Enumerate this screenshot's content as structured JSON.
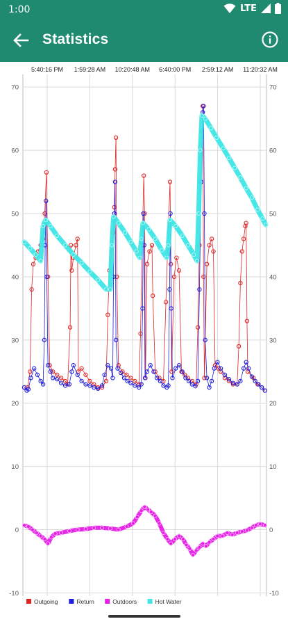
{
  "status": {
    "time": "1:00",
    "network": "LTE"
  },
  "app": {
    "title": "Statistics"
  },
  "icons": {
    "back": "arrow-back-icon",
    "info": "info-icon",
    "wifi": "wifi-icon",
    "signal": "signal-icon",
    "battery": "battery-icon"
  },
  "colors": {
    "appbar": "#1f8a70",
    "outgoing": "#e02424",
    "return": "#1c1ce0",
    "outdoors": "#e81ee8",
    "hot_water": "#3ee6e6"
  },
  "chart_data": {
    "type": "line",
    "x_ticks": [
      "5:40:16 PM",
      "1:59:28 AM",
      "10:20:48 AM",
      "6:40:00 PM",
      "2:59:12 AM",
      "11:20:32 AM"
    ],
    "y_ticks": [
      70,
      60,
      50,
      40,
      30,
      20,
      10,
      0,
      -10
    ],
    "ylim": [
      -10.5,
      72
    ],
    "grid": true,
    "legend_position": "bottom-left",
    "series": [
      {
        "name": "Outgoing",
        "style": "points-line",
        "values": [
          [
            0.0,
            22.5
          ],
          [
            0.4,
            22.5
          ],
          [
            0.7,
            25.0
          ],
          [
            0.9,
            38.0
          ],
          [
            1.1,
            42.0
          ],
          [
            1.4,
            43.0
          ],
          [
            1.7,
            44.0
          ],
          [
            2.0,
            45.0
          ],
          [
            2.3,
            46.0
          ],
          [
            2.5,
            50.0
          ],
          [
            2.7,
            56.5
          ],
          [
            2.9,
            40.0
          ],
          [
            3.1,
            26.0
          ],
          [
            3.5,
            25.0
          ],
          [
            4.0,
            24.5
          ],
          [
            4.5,
            24.0
          ],
          [
            5.0,
            23.5
          ],
          [
            5.3,
            23.0
          ],
          [
            5.6,
            32.0
          ],
          [
            5.7,
            45.0
          ],
          [
            5.8,
            41.0
          ],
          [
            6.0,
            43.0
          ],
          [
            6.3,
            45.0
          ],
          [
            6.5,
            46.0
          ],
          [
            6.6,
            25.0
          ],
          [
            7.0,
            25.5
          ],
          [
            7.5,
            24.5
          ],
          [
            8.0,
            23.5
          ],
          [
            8.5,
            23.0
          ],
          [
            9.0,
            22.5
          ],
          [
            9.5,
            22.5
          ],
          [
            10.0,
            23.5
          ],
          [
            10.2,
            34.0
          ],
          [
            10.4,
            41.0
          ],
          [
            10.7,
            44.0
          ],
          [
            10.9,
            47.0
          ],
          [
            11.0,
            51.0
          ],
          [
            11.1,
            57.0
          ],
          [
            11.2,
            62.0
          ],
          [
            11.3,
            40.0
          ],
          [
            11.5,
            26.0
          ],
          [
            12.0,
            25.0
          ],
          [
            12.5,
            24.5
          ],
          [
            13.0,
            24.0
          ],
          [
            13.5,
            23.5
          ],
          [
            14.0,
            23.0
          ],
          [
            14.2,
            31.0
          ],
          [
            14.4,
            45.0
          ],
          [
            14.6,
            56.0
          ],
          [
            14.7,
            50.0
          ],
          [
            14.8,
            24.0
          ],
          [
            15.0,
            42.0
          ],
          [
            15.3,
            44.0
          ],
          [
            15.6,
            45.0
          ],
          [
            15.7,
            37.0
          ],
          [
            16.0,
            25.0
          ],
          [
            16.5,
            24.0
          ],
          [
            17.0,
            23.5
          ],
          [
            17.3,
            36.0
          ],
          [
            17.5,
            44.0
          ],
          [
            17.8,
            55.0
          ],
          [
            17.9,
            42.0
          ],
          [
            18.0,
            25.0
          ],
          [
            18.3,
            40.0
          ],
          [
            18.6,
            43.0
          ],
          [
            18.9,
            41.0
          ],
          [
            19.2,
            25.0
          ],
          [
            19.6,
            24.5
          ],
          [
            20.0,
            24.0
          ],
          [
            20.5,
            23.5
          ],
          [
            21.0,
            23.0
          ],
          [
            21.2,
            32.0
          ],
          [
            21.4,
            45.0
          ],
          [
            21.6,
            55.0
          ],
          [
            21.7,
            63.0
          ],
          [
            21.8,
            67.0
          ],
          [
            21.9,
            40.0
          ],
          [
            22.0,
            24.0
          ],
          [
            22.3,
            42.0
          ],
          [
            22.6,
            45.0
          ],
          [
            22.9,
            46.0
          ],
          [
            23.1,
            44.0
          ],
          [
            23.3,
            26.0
          ],
          [
            23.7,
            25.5
          ],
          [
            24.0,
            25.0
          ],
          [
            24.5,
            24.0
          ],
          [
            25.0,
            23.5
          ],
          [
            25.5,
            23.0
          ],
          [
            26.0,
            23.0
          ],
          [
            26.2,
            29.0
          ],
          [
            26.4,
            39.0
          ],
          [
            26.6,
            44.0
          ],
          [
            26.8,
            46.0
          ],
          [
            27.0,
            48.0
          ],
          [
            27.1,
            48.5
          ],
          [
            27.2,
            33.0
          ],
          [
            27.3,
            25.0
          ],
          [
            28.0,
            24.0
          ],
          [
            28.5,
            23.0
          ],
          [
            29.0,
            22.5
          ],
          [
            29.4,
            22.0
          ]
        ]
      },
      {
        "name": "Return",
        "style": "points-line",
        "values": [
          [
            0.0,
            22.5
          ],
          [
            0.3,
            22.0
          ],
          [
            0.5,
            22.2
          ],
          [
            0.8,
            24.0
          ],
          [
            1.2,
            25.5
          ],
          [
            1.6,
            24.5
          ],
          [
            2.0,
            23.5
          ],
          [
            2.3,
            23.0
          ],
          [
            2.45,
            30.0
          ],
          [
            2.55,
            45.0
          ],
          [
            2.65,
            52.0
          ],
          [
            2.75,
            40.0
          ],
          [
            2.9,
            26.0
          ],
          [
            3.2,
            25.0
          ],
          [
            3.5,
            24.0
          ],
          [
            4.0,
            23.8
          ],
          [
            4.5,
            23.2
          ],
          [
            5.0,
            22.8
          ],
          [
            5.5,
            23.0
          ],
          [
            5.8,
            25.0
          ],
          [
            6.0,
            26.0
          ],
          [
            6.5,
            24.5
          ],
          [
            7.0,
            23.5
          ],
          [
            7.5,
            23.0
          ],
          [
            8.0,
            22.8
          ],
          [
            8.5,
            22.5
          ],
          [
            9.0,
            22.3
          ],
          [
            9.5,
            22.8
          ],
          [
            9.8,
            24.5
          ],
          [
            10.2,
            26.0
          ],
          [
            10.6,
            25.5
          ],
          [
            10.8,
            24.0
          ],
          [
            10.9,
            40.0
          ],
          [
            11.0,
            50.0
          ],
          [
            11.1,
            55.0
          ],
          [
            11.2,
            30.0
          ],
          [
            11.4,
            25.5
          ],
          [
            11.8,
            24.8
          ],
          [
            12.2,
            24.0
          ],
          [
            12.6,
            23.5
          ],
          [
            13.0,
            23.2
          ],
          [
            13.5,
            22.8
          ],
          [
            14.0,
            22.5
          ],
          [
            14.3,
            23.0
          ],
          [
            14.45,
            35.0
          ],
          [
            14.55,
            50.0
          ],
          [
            14.65,
            45.0
          ],
          [
            14.75,
            24.0
          ],
          [
            15.0,
            25.0
          ],
          [
            15.4,
            26.0
          ],
          [
            15.8,
            25.0
          ],
          [
            16.2,
            24.0
          ],
          [
            16.6,
            23.5
          ],
          [
            17.0,
            22.8
          ],
          [
            17.4,
            22.5
          ],
          [
            17.6,
            22.8
          ],
          [
            17.75,
            38.0
          ],
          [
            17.85,
            50.0
          ],
          [
            17.95,
            35.0
          ],
          [
            18.1,
            24.0
          ],
          [
            18.5,
            25.5
          ],
          [
            18.9,
            26.0
          ],
          [
            19.3,
            25.0
          ],
          [
            19.7,
            24.0
          ],
          [
            20.1,
            23.5
          ],
          [
            20.5,
            23.0
          ],
          [
            20.9,
            22.7
          ],
          [
            21.2,
            23.5
          ],
          [
            21.4,
            38.0
          ],
          [
            21.6,
            55.0
          ],
          [
            21.8,
            66.0
          ],
          [
            21.9,
            67.0
          ],
          [
            22.0,
            50.0
          ],
          [
            22.1,
            30.0
          ],
          [
            22.3,
            24.0
          ],
          [
            22.6,
            22.5
          ],
          [
            22.9,
            23.5
          ],
          [
            23.2,
            25.5
          ],
          [
            23.6,
            26.5
          ],
          [
            24.0,
            25.5
          ],
          [
            24.5,
            24.5
          ],
          [
            25.0,
            23.8
          ],
          [
            25.5,
            23.2
          ],
          [
            26.0,
            23.0
          ],
          [
            26.4,
            23.5
          ],
          [
            26.8,
            25.5
          ],
          [
            27.1,
            26.5
          ],
          [
            27.4,
            25.5
          ],
          [
            27.8,
            24.2
          ],
          [
            28.2,
            23.5
          ],
          [
            28.6,
            23.0
          ],
          [
            29.0,
            22.5
          ],
          [
            29.4,
            22.0
          ]
        ]
      },
      {
        "name": "Outdoors",
        "style": "points",
        "values": [
          [
            0.0,
            0.7
          ],
          [
            0.5,
            0.5
          ],
          [
            1.0,
            0.0
          ],
          [
            1.5,
            -0.5
          ],
          [
            2.0,
            -1.0
          ],
          [
            2.5,
            -1.5
          ],
          [
            2.9,
            -2.2
          ],
          [
            3.3,
            -1.2
          ],
          [
            3.8,
            -0.6
          ],
          [
            4.5,
            -0.5
          ],
          [
            5.5,
            -0.2
          ],
          [
            6.5,
            0.0
          ],
          [
            7.5,
            0.1
          ],
          [
            8.5,
            0.3
          ],
          [
            9.5,
            0.3
          ],
          [
            10.5,
            0.2
          ],
          [
            11.5,
            0.0
          ],
          [
            12.5,
            0.5
          ],
          [
            13.3,
            1.0
          ],
          [
            13.8,
            2.0
          ],
          [
            14.3,
            3.0
          ],
          [
            14.7,
            3.6
          ],
          [
            15.1,
            3.2
          ],
          [
            15.5,
            2.8
          ],
          [
            16.0,
            2.2
          ],
          [
            16.5,
            1.0
          ],
          [
            17.0,
            -0.5
          ],
          [
            17.5,
            -1.5
          ],
          [
            17.9,
            -2.2
          ],
          [
            18.4,
            -1.5
          ],
          [
            18.9,
            -1.0
          ],
          [
            19.4,
            -1.5
          ],
          [
            19.8,
            -2.4
          ],
          [
            20.2,
            -3.0
          ],
          [
            20.6,
            -4.0
          ],
          [
            21.0,
            -3.3
          ],
          [
            21.4,
            -2.8
          ],
          [
            21.8,
            -2.2
          ],
          [
            22.2,
            -2.6
          ],
          [
            22.6,
            -2.0
          ],
          [
            23.1,
            -1.5
          ],
          [
            23.6,
            -1.0
          ],
          [
            24.2,
            -1.0
          ],
          [
            24.8,
            -0.5
          ],
          [
            25.4,
            -0.8
          ],
          [
            26.0,
            -0.5
          ],
          [
            26.6,
            -0.3
          ],
          [
            27.2,
            -0.1
          ],
          [
            27.8,
            0.3
          ],
          [
            28.3,
            0.7
          ],
          [
            28.8,
            0.9
          ],
          [
            29.4,
            0.7
          ]
        ]
      },
      {
        "name": "Hot Water",
        "style": "points",
        "values": [
          [
            0.0,
            45.5
          ],
          [
            0.7,
            44.5
          ],
          [
            1.4,
            43.5
          ],
          [
            2.0,
            42.5
          ],
          [
            2.3,
            48.0
          ],
          [
            2.6,
            49.0
          ],
          [
            3.2,
            48.0
          ],
          [
            4.0,
            46.5
          ],
          [
            5.0,
            45.0
          ],
          [
            6.0,
            43.5
          ],
          [
            7.0,
            42.2
          ],
          [
            8.0,
            40.8
          ],
          [
            9.0,
            39.5
          ],
          [
            10.0,
            38.0
          ],
          [
            10.5,
            38.0
          ],
          [
            10.7,
            45.0
          ],
          [
            10.9,
            49.5
          ],
          [
            11.5,
            48.5
          ],
          [
            12.3,
            47.0
          ],
          [
            13.0,
            45.5
          ],
          [
            13.7,
            44.0
          ],
          [
            14.1,
            43.0
          ],
          [
            14.3,
            46.0
          ],
          [
            14.5,
            48.5
          ],
          [
            15.2,
            47.5
          ],
          [
            16.0,
            46.0
          ],
          [
            16.8,
            44.2
          ],
          [
            17.4,
            43.0
          ],
          [
            17.6,
            45.0
          ],
          [
            17.8,
            49.0
          ],
          [
            18.5,
            48.0
          ],
          [
            19.3,
            46.5
          ],
          [
            20.0,
            45.0
          ],
          [
            20.7,
            43.5
          ],
          [
            21.1,
            42.5
          ],
          [
            21.3,
            50.0
          ],
          [
            21.5,
            60.0
          ],
          [
            21.7,
            65.5
          ],
          [
            22.1,
            65.0
          ],
          [
            22.8,
            63.5
          ],
          [
            23.5,
            62.0
          ],
          [
            24.3,
            60.3
          ],
          [
            25.0,
            58.8
          ],
          [
            25.7,
            57.2
          ],
          [
            26.4,
            55.7
          ],
          [
            27.1,
            54.0
          ],
          [
            27.8,
            52.5
          ],
          [
            28.5,
            50.6
          ],
          [
            29.1,
            49.2
          ],
          [
            29.5,
            48.2
          ]
        ]
      }
    ]
  }
}
